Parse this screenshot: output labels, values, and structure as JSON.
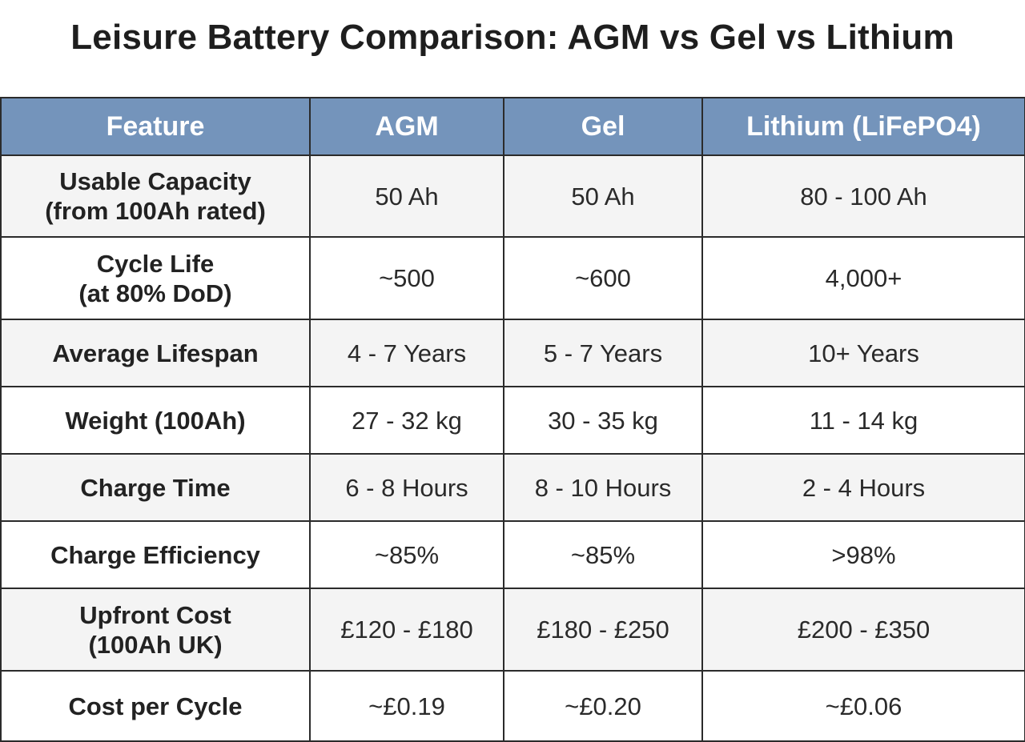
{
  "title": "Leisure Battery Comparison: AGM vs Gel vs Lithium",
  "table": {
    "headers": [
      "Feature",
      "AGM",
      "Gel",
      "Lithium (LiFePO4)"
    ],
    "rows": [
      {
        "feature": [
          "Usable Capacity",
          "(from 100Ah rated)"
        ],
        "agm": "50 Ah",
        "gel": "50 Ah",
        "lithium": "80 - 100 Ah"
      },
      {
        "feature": [
          "Cycle Life",
          "(at 80% DoD)"
        ],
        "agm": "~500",
        "gel": "~600",
        "lithium": "4,000+"
      },
      {
        "feature": [
          "Average Lifespan"
        ],
        "agm": "4 - 7 Years",
        "gel": "5 - 7 Years",
        "lithium": "10+ Years"
      },
      {
        "feature": [
          "Weight (100Ah)"
        ],
        "agm": "27 - 32 kg",
        "gel": "30 - 35 kg",
        "lithium": "11 - 14 kg"
      },
      {
        "feature": [
          "Charge Time"
        ],
        "agm": "6 - 8 Hours",
        "gel": "8 - 10 Hours",
        "lithium": "2 - 4 Hours"
      },
      {
        "feature": [
          "Charge Efficiency"
        ],
        "agm": "~85%",
        "gel": "~85%",
        "lithium": ">98%"
      },
      {
        "feature": [
          "Upfront Cost",
          "(100Ah UK)"
        ],
        "agm": "£120 - £180",
        "gel": "£180 - £250",
        "lithium": "£200 - £350"
      },
      {
        "feature": [
          "Cost per Cycle"
        ],
        "agm": "~£0.19",
        "gel": "~£0.20",
        "lithium": "~£0.06"
      }
    ]
  },
  "colors": {
    "header_bg": "#7494bb",
    "header_text": "#ffffff",
    "row_alt_bg": "#f4f4f4",
    "border": "#2b2b2b"
  }
}
